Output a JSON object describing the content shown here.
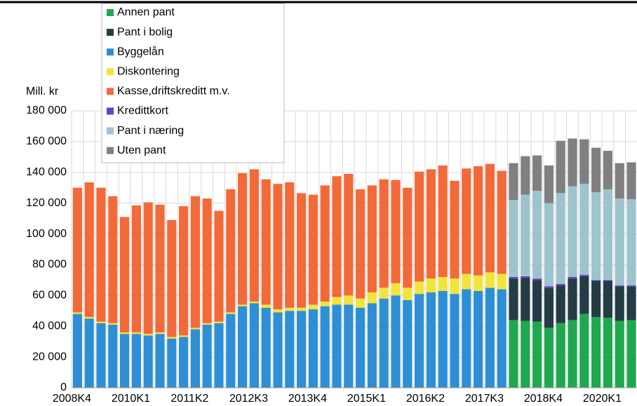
{
  "chart_data": {
    "type": "stacked_bar",
    "y_axis_label": "Mill. kr",
    "categories": [
      "2008K4",
      null,
      null,
      null,
      null,
      "2010K1",
      null,
      null,
      null,
      null,
      "2011K2",
      null,
      null,
      null,
      null,
      "2012K3",
      null,
      null,
      null,
      null,
      "2013K4",
      null,
      null,
      null,
      null,
      "2015K1",
      null,
      null,
      null,
      null,
      "2016K2",
      null,
      null,
      null,
      null,
      "2017K3",
      null,
      null,
      null,
      null,
      "2018K4",
      null,
      null,
      null,
      null,
      "2020K1",
      null,
      null
    ],
    "series": [
      {
        "name": "Annen pant",
        "color": "#1fa84f",
        "values": [
          null,
          null,
          null,
          null,
          null,
          null,
          null,
          null,
          null,
          null,
          null,
          null,
          null,
          null,
          null,
          null,
          null,
          null,
          null,
          null,
          null,
          null,
          null,
          null,
          null,
          null,
          null,
          null,
          null,
          null,
          null,
          null,
          null,
          null,
          null,
          null,
          null,
          44000,
          43500,
          43000,
          39000,
          42000,
          44000,
          48000,
          46000,
          45500,
          43500,
          44000
        ]
      },
      {
        "name": "Pant i bolig",
        "color": "#243c45",
        "values": [
          null,
          null,
          null,
          null,
          null,
          null,
          null,
          null,
          null,
          null,
          null,
          null,
          null,
          null,
          null,
          null,
          null,
          null,
          null,
          null,
          null,
          null,
          null,
          null,
          null,
          null,
          null,
          null,
          null,
          null,
          null,
          null,
          null,
          null,
          null,
          null,
          null,
          27000,
          28000,
          27000,
          26000,
          24500,
          27000,
          24500,
          23500,
          24000,
          22500,
          22000
        ]
      },
      {
        "name": "Byggelån",
        "color": "#2e8fd6",
        "values": [
          48000,
          45000,
          42000,
          41000,
          35000,
          35000,
          34000,
          35000,
          32000,
          33000,
          38000,
          41000,
          42000,
          48000,
          53000,
          55000,
          52000,
          49000,
          50000,
          50000,
          51000,
          53000,
          54000,
          54000,
          52000,
          55000,
          58000,
          60000,
          57000,
          61000,
          62000,
          63000,
          61000,
          64000,
          63000,
          65000,
          64000,
          null,
          null,
          null,
          null,
          null,
          null,
          null,
          null,
          null,
          null,
          null
        ]
      },
      {
        "name": "Diskontering",
        "color": "#f2e43a",
        "values": [
          1000,
          1000,
          1000,
          1000,
          1000,
          1000,
          1000,
          1000,
          1000,
          1000,
          1000,
          1000,
          1000,
          1000,
          1000,
          1000,
          2000,
          2000,
          2000,
          2000,
          3000,
          3000,
          5000,
          6000,
          6000,
          7000,
          7000,
          8000,
          8000,
          8000,
          9000,
          9000,
          10000,
          10000,
          10000,
          10000,
          10000,
          null,
          null,
          null,
          null,
          null,
          null,
          null,
          null,
          null,
          null,
          null
        ]
      },
      {
        "name": "Kasse,driftskreditt m.v.",
        "color": "#f26a3a",
        "values": [
          81000,
          87500,
          87000,
          82500,
          75000,
          82500,
          85500,
          83000,
          76000,
          84000,
          85500,
          81000,
          72000,
          80000,
          85500,
          86000,
          81500,
          81500,
          81500,
          74500,
          71500,
          75500,
          78500,
          79000,
          71000,
          69500,
          70500,
          67000,
          65000,
          71500,
          71000,
          72500,
          63500,
          68500,
          71000,
          70500,
          67000,
          null,
          null,
          null,
          null,
          null,
          null,
          null,
          null,
          null,
          null,
          null
        ]
      },
      {
        "name": "Kredittkort",
        "color": "#6a3fd0",
        "values": [
          null,
          null,
          null,
          null,
          null,
          null,
          null,
          null,
          null,
          null,
          null,
          null,
          null,
          null,
          null,
          null,
          null,
          null,
          null,
          null,
          null,
          null,
          null,
          null,
          null,
          null,
          null,
          null,
          null,
          null,
          null,
          null,
          null,
          null,
          null,
          null,
          null,
          1000,
          1000,
          1000,
          1000,
          1000,
          1000,
          1000,
          500,
          500,
          500,
          500
        ]
      },
      {
        "name": "Pant i næring",
        "color": "#9dc4cc",
        "values": [
          null,
          null,
          null,
          null,
          null,
          null,
          null,
          null,
          null,
          null,
          null,
          null,
          null,
          null,
          null,
          null,
          null,
          null,
          null,
          null,
          null,
          null,
          null,
          null,
          null,
          null,
          null,
          null,
          null,
          null,
          null,
          null,
          null,
          null,
          null,
          null,
          null,
          50000,
          53000,
          57000,
          54000,
          59000,
          59000,
          59000,
          57000,
          59000,
          56500,
          56000
        ]
      },
      {
        "name": "Uten pant",
        "color": "#808080",
        "values": [
          null,
          null,
          null,
          null,
          null,
          null,
          null,
          null,
          null,
          null,
          null,
          null,
          null,
          null,
          null,
          null,
          null,
          null,
          null,
          null,
          null,
          null,
          null,
          null,
          null,
          null,
          null,
          null,
          null,
          null,
          null,
          null,
          null,
          null,
          null,
          null,
          null,
          24000,
          25000,
          23000,
          24500,
          34000,
          31000,
          29000,
          29000,
          25000,
          23000,
          24000
        ]
      }
    ],
    "ylim": [
      0,
      180000
    ],
    "yticks": [
      0,
      {
        "value": 20000,
        "label": "20 000"
      },
      {
        "value": 40000,
        "label": "40 000"
      },
      {
        "value": 60000,
        "label": "60 000"
      },
      {
        "value": 80000,
        "label": "80 000"
      },
      {
        "value": 100000,
        "label": "100 000"
      },
      {
        "value": 120000,
        "label": "120 000"
      },
      {
        "value": 140000,
        "label": "140 000"
      },
      {
        "value": 160000,
        "label": "160 000"
      },
      {
        "value": 180000,
        "label": "180 000"
      }
    ],
    "grid": true
  }
}
